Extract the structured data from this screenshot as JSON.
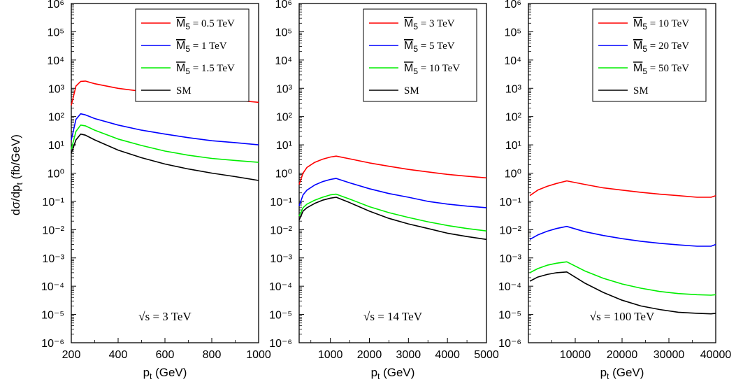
{
  "figure": {
    "ylabel": "dσ/dp",
    "ylabel_sub": "t",
    "ylabel_unit": " (fb/GeV)",
    "xlabel_main": "p",
    "xlabel_sub": "t",
    "xlabel_unit": " (GeV)",
    "ytick_base": "10",
    "colors": {
      "red": "#ff0000",
      "blue": "#0000ff",
      "green": "#00ee00",
      "black": "#000000"
    }
  },
  "chart_data": [
    {
      "type": "line",
      "annotation": "√s = 3 TeV",
      "xlabel": "pt (GeV)",
      "ylabel": "dσ/dpt (fb/GeV)",
      "yscale": "log",
      "xlim": [
        200,
        1000
      ],
      "ylim_exponents": [
        -6,
        6
      ],
      "xticks": [
        200,
        400,
        600,
        800,
        1000
      ],
      "yticks_exponents": [
        -6,
        -5,
        -4,
        -3,
        -2,
        -1,
        0,
        1,
        2,
        3,
        4,
        5,
        6
      ],
      "legend_position": "top-right",
      "series": [
        {
          "name": "M5 = 0.5 TeV",
          "legend_sym": "M",
          "legend_sub": "5",
          "legend_rest": " = 0.5 TeV",
          "color": "#ff0000",
          "x": [
            200,
            220,
            240,
            260,
            300,
            400,
            500,
            600,
            700,
            800,
            900,
            1000
          ],
          "y": [
            250,
            1200,
            1750,
            1800,
            1450,
            1000,
            780,
            620,
            520,
            450,
            380,
            320
          ]
        },
        {
          "name": "M5 = 1 TeV",
          "legend_sym": "M",
          "legend_sub": "5",
          "legend_rest": " = 1 TeV",
          "color": "#0000ff",
          "x": [
            200,
            220,
            240,
            260,
            300,
            400,
            500,
            600,
            700,
            800,
            900,
            1000
          ],
          "y": [
            15,
            80,
            125,
            115,
            85,
            50,
            33,
            24,
            18,
            14,
            12,
            10
          ]
        },
        {
          "name": "M5 = 1.5 TeV",
          "legend_sym": "M",
          "legend_sub": "5",
          "legend_rest": " = 1.5 TeV",
          "color": "#00ee00",
          "x": [
            200,
            220,
            240,
            260,
            300,
            400,
            500,
            600,
            700,
            800,
            900,
            1000
          ],
          "y": [
            7,
            30,
            50,
            47,
            33,
            16,
            9.5,
            6,
            4.3,
            3.3,
            2.8,
            2.4
          ]
        },
        {
          "name": "SM",
          "legend_sym": "SM",
          "legend_sub": "",
          "legend_rest": "",
          "color": "#000000",
          "x": [
            200,
            220,
            240,
            260,
            300,
            400,
            500,
            600,
            700,
            800,
            900,
            1000
          ],
          "y": [
            5,
            15,
            24,
            22,
            15,
            6.5,
            3.5,
            2.1,
            1.4,
            1.0,
            0.75,
            0.55
          ]
        }
      ]
    },
    {
      "type": "line",
      "annotation": "√s = 14 TeV",
      "xlabel": "pt (GeV)",
      "ylabel": "dσ/dpt (fb/GeV)",
      "yscale": "log",
      "xlim": [
        200,
        5000
      ],
      "ylim_exponents": [
        -6,
        6
      ],
      "xticks": [
        1000,
        2000,
        3000,
        4000,
        5000
      ],
      "yticks_exponents": [
        -6,
        -5,
        -4,
        -3,
        -2,
        -1,
        0,
        1,
        2,
        3,
        4,
        5,
        6
      ],
      "legend_position": "top-right",
      "series": [
        {
          "name": "M5 = 3 TeV",
          "legend_sym": "M",
          "legend_sub": "5",
          "legend_rest": " = 3 TeV",
          "color": "#ff0000",
          "x": [
            200,
            300,
            400,
            600,
            800,
            1000,
            1150,
            1500,
            2000,
            2500,
            3000,
            3500,
            4000,
            4500,
            5000
          ],
          "y": [
            0.4,
            1.0,
            1.6,
            2.4,
            3.1,
            3.7,
            4.0,
            3.2,
            2.3,
            1.75,
            1.35,
            1.1,
            0.9,
            0.78,
            0.68
          ]
        },
        {
          "name": "M5 = 5 TeV",
          "legend_sym": "M",
          "legend_sub": "5",
          "legend_rest": " = 5 TeV",
          "color": "#0000ff",
          "x": [
            200,
            300,
            400,
            600,
            800,
            1000,
            1150,
            1500,
            2000,
            2500,
            3000,
            3500,
            4000,
            4500,
            5000
          ],
          "y": [
            0.07,
            0.17,
            0.25,
            0.38,
            0.5,
            0.6,
            0.65,
            0.45,
            0.28,
            0.19,
            0.14,
            0.1,
            0.08,
            0.068,
            0.06
          ]
        },
        {
          "name": "M5 = 10 TeV",
          "legend_sym": "M",
          "legend_sub": "5",
          "legend_rest": " = 10 TeV",
          "color": "#00ee00",
          "x": [
            200,
            300,
            400,
            600,
            800,
            1000,
            1150,
            1500,
            2000,
            2500,
            3000,
            3500,
            4000,
            4500,
            5000
          ],
          "y": [
            0.03,
            0.06,
            0.08,
            0.11,
            0.14,
            0.17,
            0.18,
            0.12,
            0.065,
            0.04,
            0.027,
            0.019,
            0.014,
            0.011,
            0.009
          ]
        },
        {
          "name": "SM",
          "legend_sym": "SM",
          "legend_sub": "",
          "legend_rest": "",
          "color": "#000000",
          "x": [
            200,
            300,
            400,
            600,
            800,
            1000,
            1150,
            1500,
            2000,
            2500,
            3000,
            3500,
            4000,
            4500,
            5000
          ],
          "y": [
            0.022,
            0.045,
            0.06,
            0.085,
            0.11,
            0.13,
            0.14,
            0.09,
            0.045,
            0.025,
            0.016,
            0.011,
            0.0075,
            0.0057,
            0.0045
          ]
        }
      ]
    },
    {
      "type": "line",
      "annotation": "√s = 100 TeV",
      "xlabel": "pt (GeV)",
      "ylabel": "dσ/dpt (fb/GeV)",
      "yscale": "log",
      "xlim": [
        0,
        40000
      ],
      "ylim_exponents": [
        -6,
        6
      ],
      "xticks": [
        10000,
        20000,
        30000,
        40000
      ],
      "yticks_exponents": [
        -6,
        -5,
        -4,
        -3,
        -2,
        -1,
        0,
        1,
        2,
        3,
        4,
        5,
        6
      ],
      "legend_position": "top-right",
      "series": [
        {
          "name": "M5 = 10 TeV",
          "legend_sym": "M",
          "legend_sub": "5",
          "legend_rest": " = 10 TeV",
          "color": "#ff0000",
          "x": [
            300,
            2000,
            4000,
            6000,
            8200,
            12000,
            16000,
            20000,
            24000,
            28000,
            32000,
            36000,
            39000,
            40000
          ],
          "y": [
            0.16,
            0.25,
            0.34,
            0.43,
            0.53,
            0.4,
            0.3,
            0.25,
            0.21,
            0.18,
            0.16,
            0.14,
            0.14,
            0.16
          ]
        },
        {
          "name": "M5 = 20 TeV",
          "legend_sym": "M",
          "legend_sub": "5",
          "legend_rest": " = 20 TeV",
          "color": "#0000ff",
          "x": [
            300,
            2000,
            4000,
            6000,
            8200,
            12000,
            16000,
            20000,
            24000,
            28000,
            32000,
            36000,
            39000,
            40000
          ],
          "y": [
            0.0045,
            0.0065,
            0.0088,
            0.011,
            0.013,
            0.0085,
            0.0062,
            0.0048,
            0.0039,
            0.0033,
            0.0029,
            0.0026,
            0.0026,
            0.003
          ]
        },
        {
          "name": "M5 = 50 TeV",
          "legend_sym": "M",
          "legend_sub": "5",
          "legend_rest": " = 50 TeV",
          "color": "#00ee00",
          "x": [
            300,
            2000,
            4000,
            6000,
            8200,
            12000,
            16000,
            20000,
            24000,
            28000,
            32000,
            36000,
            39000,
            40000
          ],
          "y": [
            0.0003,
            0.00042,
            0.00055,
            0.00065,
            0.00073,
            0.00035,
            0.00019,
            0.00012,
            8.5e-05,
            6.5e-05,
            5.5e-05,
            5e-05,
            4.8e-05,
            5e-05
          ]
        },
        {
          "name": "SM",
          "legend_sym": "SM",
          "legend_sub": "",
          "legend_rest": "",
          "color": "#000000",
          "x": [
            300,
            2000,
            4000,
            6000,
            8200,
            12000,
            16000,
            20000,
            24000,
            28000,
            32000,
            36000,
            39000,
            40000
          ],
          "y": [
            0.00015,
            0.00021,
            0.00026,
            0.0003,
            0.00032,
            0.00013,
            6e-05,
            3.2e-05,
            2e-05,
            1.5e-05,
            1.2e-05,
            1.1e-05,
            1.05e-05,
            1.1e-05
          ]
        }
      ]
    }
  ]
}
